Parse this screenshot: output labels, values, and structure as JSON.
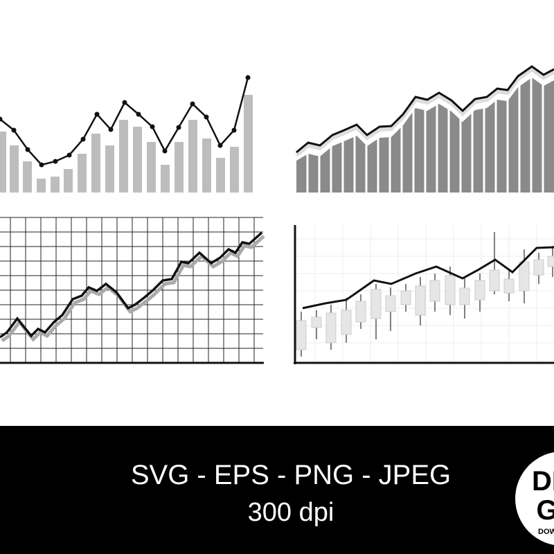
{
  "banner": {
    "formats": "SVG - EPS - PNG - JPEG",
    "resolution": "300 dpi"
  },
  "badge": {
    "line1": "DI",
    "line2": "G",
    "line3": "DOWI"
  }
}
